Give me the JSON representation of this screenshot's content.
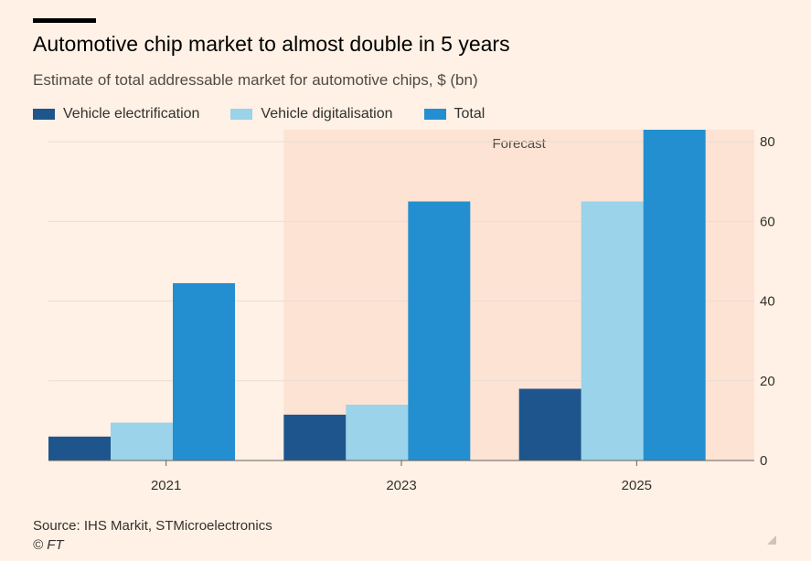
{
  "header": {
    "title": "Automotive chip market to almost double in 5 years",
    "subtitle": "Estimate of total addressable market for automotive chips, $ (bn)"
  },
  "legend": {
    "items": [
      {
        "label": "Vehicle electrification",
        "color": "#1E558C"
      },
      {
        "label": "Vehicle digitalisation",
        "color": "#9AD3EA"
      },
      {
        "label": "Total",
        "color": "#238FD0"
      }
    ]
  },
  "footer": {
    "source": "Source: IHS Markit, STMicroelectronics",
    "copyright": "© FT"
  },
  "colors": {
    "background": "#FFF1E5",
    "forecast_band": "#FCE3D3",
    "grid": "#E9DED5",
    "axis": "#66605C"
  },
  "chart_data": {
    "type": "bar",
    "title": "Automotive chip market to almost double in 5 years",
    "subtitle": "Estimate of total addressable market for automotive chips, $ (bn)",
    "categories": [
      "2021",
      "2023",
      "2025"
    ],
    "series": [
      {
        "name": "Vehicle electrification",
        "values": [
          6,
          11.5,
          18
        ]
      },
      {
        "name": "Vehicle digitalisation",
        "values": [
          9.5,
          14,
          65
        ]
      },
      {
        "name": "Total",
        "values": [
          44.5,
          65,
          83
        ]
      }
    ],
    "ylim": [
      0,
      83
    ],
    "yticks": [
      0,
      20,
      40,
      60,
      80
    ],
    "y_axis_side": "right",
    "grid": true,
    "legend_position": "top-left",
    "annotation": {
      "label": "Forecast",
      "from_category": "2023",
      "to_category": "2025"
    }
  }
}
